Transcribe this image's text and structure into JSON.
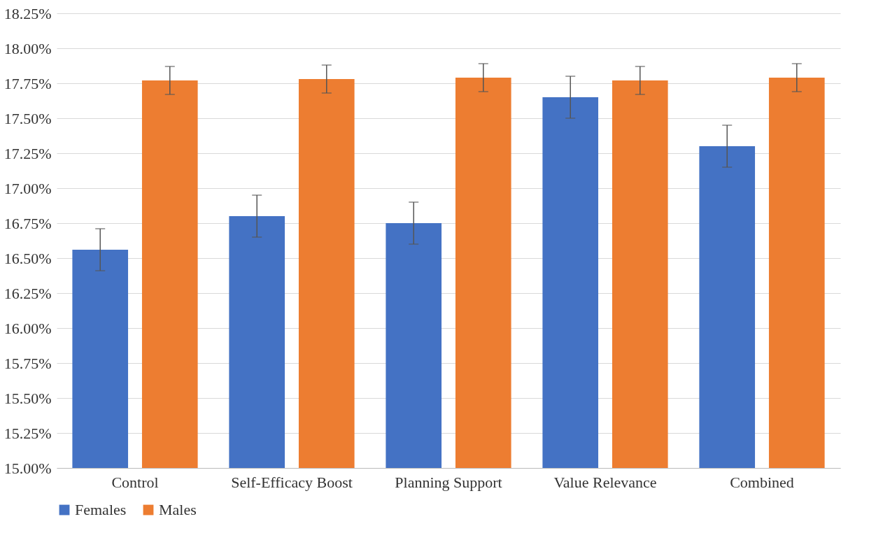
{
  "chart_data": {
    "type": "bar",
    "categories": [
      "Control",
      "Self-Efficacy Boost",
      "Planning Support",
      "Value Relevance",
      "Combined"
    ],
    "series": [
      {
        "name": "Females",
        "color": "#4472c4",
        "values": [
          16.56,
          16.8,
          16.75,
          17.65,
          17.3
        ],
        "errors": [
          0.15,
          0.15,
          0.15,
          0.15,
          0.15
        ]
      },
      {
        "name": "Males",
        "color": "#ed7d31",
        "values": [
          17.77,
          17.78,
          17.79,
          17.77,
          17.79
        ],
        "errors": [
          0.1,
          0.1,
          0.1,
          0.1,
          0.1
        ]
      }
    ],
    "ylim": [
      15,
      18.25
    ],
    "yticks": [
      {
        "value": 15,
        "label": "15.00%"
      },
      {
        "value": 15.25,
        "label": "15.25%"
      },
      {
        "value": 15.5,
        "label": "15.50%"
      },
      {
        "value": 15.75,
        "label": "15.75%"
      },
      {
        "value": 16,
        "label": "16.00%"
      },
      {
        "value": 16.25,
        "label": "16.25%"
      },
      {
        "value": 16.5,
        "label": "16.50%"
      },
      {
        "value": 16.75,
        "label": "16.75%"
      },
      {
        "value": 17,
        "label": "17.00%"
      },
      {
        "value": 17.25,
        "label": "17.25%"
      },
      {
        "value": 17.5,
        "label": "17.50%"
      },
      {
        "value": 17.75,
        "label": "17.75%"
      },
      {
        "value": 18,
        "label": "18.00%"
      },
      {
        "value": 18.25,
        "label": "18.25%"
      }
    ],
    "grid": "y",
    "legend": "bottom"
  }
}
